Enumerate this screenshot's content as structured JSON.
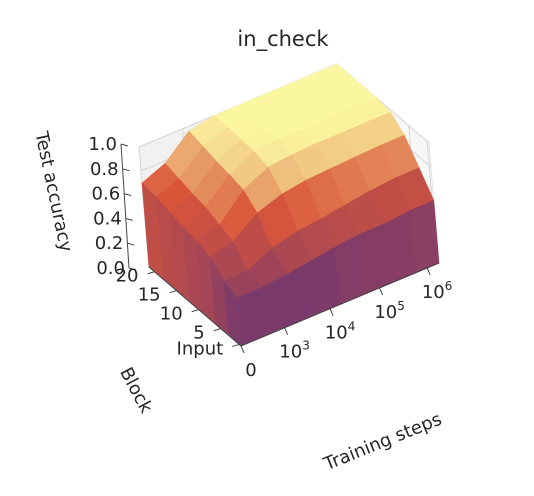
{
  "chart_data": {
    "type": "surface",
    "title": "in_check",
    "xlabel": "Training steps",
    "ylabel": "Block",
    "zlabel": "Test accuracy",
    "x_ticks": [
      {
        "base": "0",
        "exp": ""
      },
      {
        "base": "10",
        "exp": "3"
      },
      {
        "base": "10",
        "exp": "4"
      },
      {
        "base": "10",
        "exp": "5"
      },
      {
        "base": "10",
        "exp": "6"
      }
    ],
    "y_ticks": [
      "Input",
      "5",
      "10",
      "15",
      "20"
    ],
    "z_ticks": [
      "0.0",
      "0.2",
      "0.4",
      "0.6",
      "0.8",
      "1.0"
    ],
    "zlim": [
      0,
      1
    ],
    "colormap": "inferno-like",
    "colors": {
      "low": "#7a3a6b",
      "mid": "#d9553a",
      "high": "#fbf7a0"
    },
    "surface": {
      "x_fractions": [
        0,
        0.12,
        0.25,
        0.38,
        0.5,
        0.62,
        0.75,
        0.88,
        1.0
      ],
      "block_fractions": [
        0,
        0.14,
        0.28,
        0.42,
        0.57,
        0.71,
        0.85,
        1.0
      ],
      "z": [
        [
          0.4,
          0.45,
          0.55,
          0.6,
          0.62,
          0.65,
          0.68,
          0.7
        ],
        [
          0.4,
          0.45,
          0.6,
          0.65,
          0.7,
          0.72,
          0.75,
          0.78
        ],
        [
          0.42,
          0.55,
          0.75,
          0.85,
          0.88,
          0.9,
          0.93,
          0.96
        ],
        [
          0.45,
          0.6,
          0.82,
          0.95,
          0.98,
          0.99,
          1.0,
          1.0
        ],
        [
          0.48,
          0.62,
          0.85,
          0.97,
          1.0,
          1.0,
          1.0,
          1.0
        ],
        [
          0.5,
          0.65,
          0.86,
          0.98,
          1.0,
          1.0,
          1.0,
          1.0
        ],
        [
          0.5,
          0.68,
          0.87,
          0.98,
          1.0,
          1.0,
          1.0,
          1.0
        ],
        [
          0.52,
          0.7,
          0.88,
          0.98,
          1.0,
          1.0,
          1.0,
          1.0
        ],
        [
          0.52,
          0.7,
          0.88,
          0.98,
          1.0,
          1.0,
          1.0,
          1.0
        ]
      ]
    }
  }
}
